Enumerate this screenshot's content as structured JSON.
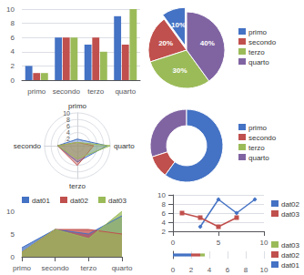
{
  "chart_data": [
    {
      "type": "bar",
      "categories": [
        "primo",
        "secondo",
        "terzo",
        "quarto"
      ],
      "series": [
        {
          "color": "#4472c4",
          "values": [
            2,
            6,
            5,
            9
          ]
        },
        {
          "color": "#c0504d",
          "values": [
            1,
            6,
            6,
            5
          ]
        },
        {
          "color": "#9bbb59",
          "values": [
            1,
            6,
            4,
            10
          ]
        }
      ],
      "ylim": [
        0,
        10
      ],
      "yticks": [
        0,
        2,
        4,
        6,
        8,
        10
      ],
      "grid": "y"
    },
    {
      "type": "pie",
      "categories": [
        "primo",
        "secondo",
        "terzo",
        "quarto"
      ],
      "values": [
        10,
        20,
        30,
        40
      ],
      "value_labels": [
        "10%",
        "20%",
        "30%",
        "40%"
      ],
      "colors": [
        "#4472c4",
        "#c0504d",
        "#9bbb59",
        "#8064a2"
      ],
      "data_labels": true,
      "legend": "right"
    },
    {
      "type": "radar",
      "categories": [
        "primo",
        "secondo",
        "terzo",
        "quarto"
      ],
      "series": [
        {
          "color": "#4472c4",
          "values": [
            2,
            6,
            5,
            9
          ]
        },
        {
          "color": "#c0504d",
          "values": [
            1,
            6,
            6,
            5
          ]
        },
        {
          "color": "#9bbb59",
          "values": [
            1,
            6,
            4,
            10
          ]
        }
      ],
      "ylim": [
        0,
        10
      ],
      "yticks": [
        2,
        4,
        6,
        8,
        10
      ],
      "grid": true
    },
    {
      "type": "donut",
      "values": [
        30,
        10,
        60
      ],
      "colors": [
        "#8064a2",
        "#c0504d",
        "#4472c4"
      ],
      "legend_entries": [
        {
          "name": "primo",
          "color": "#4472c4"
        },
        {
          "name": "secondo",
          "color": "#c0504d"
        },
        {
          "name": "terzo",
          "color": "#9bbb59"
        },
        {
          "name": "quarto",
          "color": "#8064a2"
        }
      ],
      "legend": "right"
    },
    {
      "type": "area",
      "categories": [
        "primo",
        "secondo",
        "terzo",
        "quarto"
      ],
      "series": [
        {
          "name": "dat01",
          "color": "#4472c4",
          "values": [
            2,
            6,
            5,
            9
          ]
        },
        {
          "name": "dat02",
          "color": "#c0504d",
          "values": [
            1,
            6,
            6,
            5
          ]
        },
        {
          "name": "dat03",
          "color": "#9bbb59",
          "values": [
            1,
            6,
            4,
            10
          ]
        }
      ],
      "ylim": [
        0,
        10
      ],
      "yticks": [
        0,
        5,
        10
      ],
      "grid": false,
      "legend": "top"
    },
    {
      "type": "line",
      "series": [
        {
          "name": "dat02",
          "color": "#4472c4",
          "marker": "diamond",
          "x": [
            3,
            5,
            7,
            9
          ],
          "values": [
            3,
            9,
            6,
            9
          ]
        },
        {
          "name": "dat03",
          "color": "#c0504d",
          "marker": "square",
          "x": [
            1,
            3,
            5,
            7
          ],
          "values": [
            6,
            5,
            3,
            5
          ]
        }
      ],
      "xlim": [
        0,
        10
      ],
      "xticks": [
        0,
        5,
        10
      ],
      "ylim": [
        2,
        10
      ],
      "yticks": [
        2,
        4,
        6,
        8,
        10
      ],
      "grid": "y",
      "legend": "right"
    },
    {
      "type": "bar",
      "orientation": "horizontal",
      "stacked": true,
      "series": [
        {
          "name": "dat01",
          "color": "#4472c4",
          "values": [
            2
          ]
        },
        {
          "name": "dat02",
          "color": "#c0504d",
          "values": [
            1
          ]
        },
        {
          "name": "dat03",
          "color": "#9bbb59",
          "values": [
            0.5
          ]
        }
      ],
      "xlim": [
        0,
        10
      ],
      "xticks": [
        0,
        2,
        4,
        6,
        8,
        10
      ],
      "grid": "x",
      "tick_labels": "x",
      "legend": "right"
    }
  ]
}
